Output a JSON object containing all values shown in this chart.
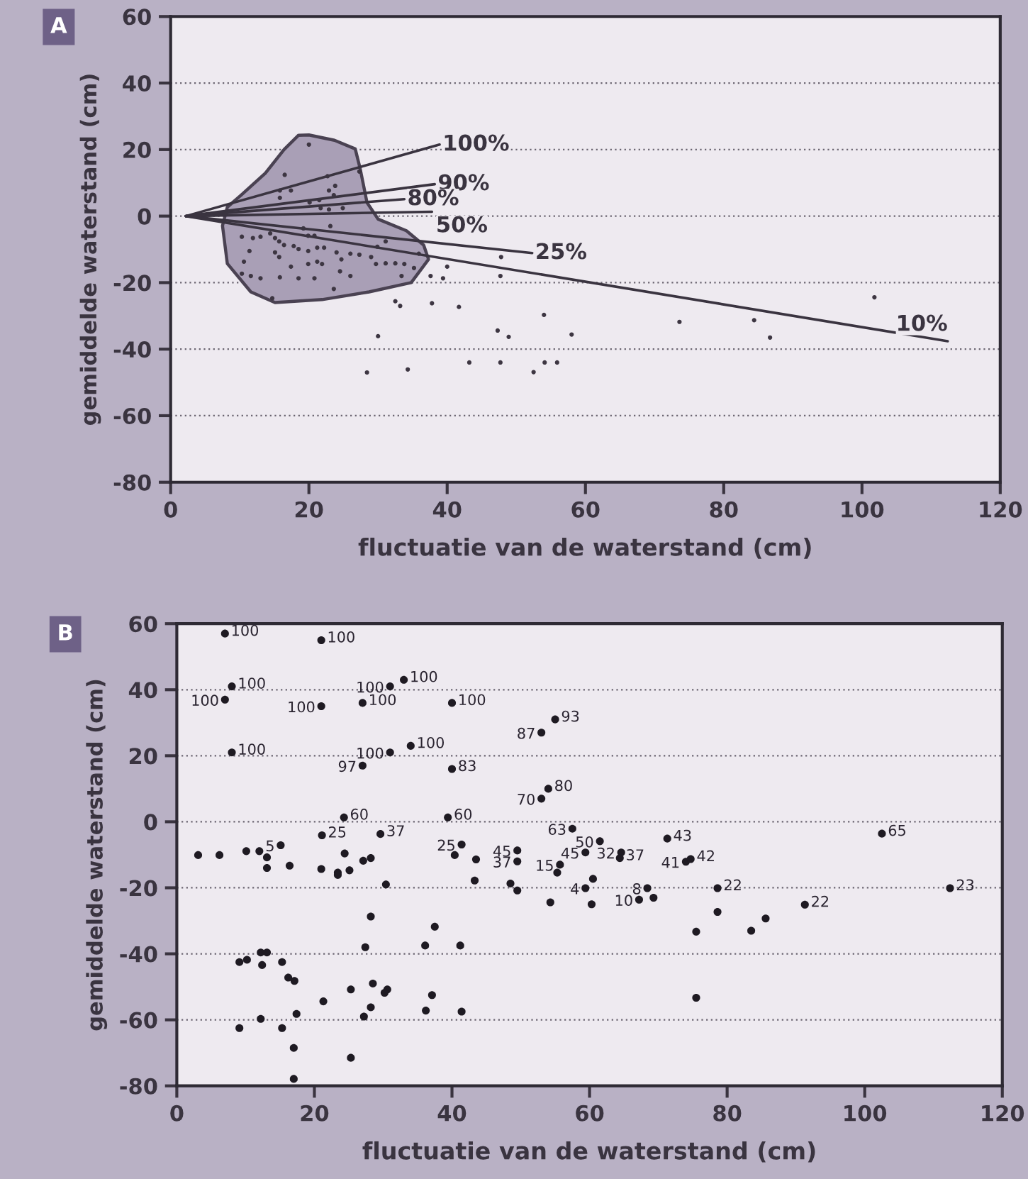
{
  "chart_data": [
    {
      "type": "scatter",
      "title": "A",
      "xlabel": "fluctuatie van de waterstand (cm)",
      "ylabel": "gemiddelde waterstand (cm)",
      "xlim": [
        0,
        120
      ],
      "ylim": [
        -80,
        60
      ],
      "xticks": [
        0,
        20,
        40,
        60,
        80,
        100,
        120
      ],
      "yticks": [
        -80,
        -60,
        -40,
        -20,
        0,
        20,
        40,
        60
      ],
      "grid": "y",
      "series": [
        {
          "type": "area",
          "color": "#a99fb6",
          "x": [
            20.0,
            23.7,
            26.7,
            27.4,
            28.4,
            30.0,
            34.1,
            36.6,
            37.3,
            34.8,
            28.7,
            21.9,
            15.1,
            11.6,
            8.2,
            7.5,
            8.2,
            10.3,
            13.7,
            16.4,
            18.5
          ],
          "values": [
            24.4,
            22.8,
            20.2,
            14.4,
            4.1,
            -0.9,
            -4.4,
            -8.7,
            -13.0,
            -20.0,
            -22.8,
            -25.1,
            -26.0,
            -22.8,
            -14.3,
            -2.9,
            2.7,
            6.5,
            12.9,
            20.0,
            24.3
          ]
        },
        {
          "type": "scatter",
          "marker": "circle",
          "color": "#3d3642",
          "x": [
            20.0,
            16.5,
            15.8,
            15.8,
            17.4,
            22.7,
            23.8,
            22.9,
            23.6,
            20.1,
            21.5,
            21.7,
            22.9,
            24.9,
            27.3,
            23.1,
            10.3,
            11.9,
            13.0,
            14.4,
            15.1,
            15.7,
            16.4,
            17.8,
            19.2,
            19.9,
            20.8,
            18.5,
            19.9,
            21.2,
            22.2,
            11.4,
            10.6,
            15.1,
            15.7,
            17.4,
            19.9,
            21.2,
            21.9,
            24.0,
            24.7,
            26.0,
            27.3,
            29.0,
            29.9,
            31.1,
            29.7,
            31.1,
            32.5,
            33.8,
            35.2,
            35.9,
            10.3,
            11.6,
            13.0,
            15.8,
            18.5,
            20.8,
            23.6,
            26.0,
            24.5,
            14.7,
            33.4,
            37.6,
            39.4,
            40.0,
            47.8,
            47.7,
            32.5,
            33.2,
            37.8,
            41.7,
            54.0,
            47.3,
            48.9,
            30.0,
            58.0,
            43.2,
            47.7,
            54.1,
            55.9,
            28.4,
            34.3,
            52.5,
            73.6,
            84.4,
            86.7,
            101.8
          ],
          "values": [
            21.5,
            12.4,
            7.7,
            5.5,
            7.7,
            12.0,
            9.1,
            7.7,
            6.3,
            4.1,
            4.8,
            2.4,
            2.0,
            2.4,
            13.4,
            -3.0,
            -6.2,
            -6.6,
            -6.2,
            -5.2,
            -6.6,
            -7.6,
            -8.7,
            -9.0,
            -3.7,
            -5.9,
            -5.9,
            -9.9,
            -10.5,
            -9.5,
            -9.5,
            -10.5,
            -13.7,
            -10.9,
            -12.3,
            -15.2,
            -14.4,
            -13.7,
            -14.4,
            -10.9,
            -13.0,
            -11.3,
            -11.6,
            -12.3,
            -9.2,
            -7.6,
            -14.4,
            -14.2,
            -14.2,
            -14.4,
            -15.6,
            -11.3,
            -17.3,
            -18.0,
            -18.7,
            -18.4,
            -18.7,
            -18.7,
            -21.9,
            -18.0,
            -16.6,
            -24.7,
            -18.0,
            -18.0,
            -18.7,
            -15.2,
            -12.3,
            -18.0,
            -25.6,
            -27.0,
            -26.2,
            -27.3,
            -29.7,
            -34.4,
            -36.3,
            -36.1,
            -35.6,
            -44.0,
            -44.0,
            -44.0,
            -44.0,
            -47.0,
            -46.1,
            -46.9,
            -31.8,
            -31.3,
            -36.5,
            -24.4
          ]
        },
        {
          "type": "line",
          "name": "100%",
          "color": "#3a3440",
          "x": [
            2.2,
            38.9
          ],
          "values": [
            0,
            21.5
          ]
        },
        {
          "type": "line",
          "name": "90%",
          "color": "#3a3440",
          "x": [
            2.2,
            38.2
          ],
          "values": [
            0,
            9.6
          ]
        },
        {
          "type": "line",
          "name": "80%",
          "color": "#3a3440",
          "x": [
            2.2,
            33.8
          ],
          "values": [
            0,
            5.1
          ]
        },
        {
          "type": "line",
          "name": "50%",
          "color": "#3a3440",
          "x": [
            2.2,
            37.8
          ],
          "values": [
            0,
            1.3
          ]
        },
        {
          "type": "line",
          "name": "25%",
          "color": "#3a3440",
          "x": [
            2.2,
            52.3
          ],
          "values": [
            0,
            -11.1
          ]
        },
        {
          "type": "line",
          "name": "10%",
          "color": "#3a3440",
          "x": [
            2.2,
            112.4
          ],
          "values": [
            0,
            -37.6
          ]
        }
      ]
    },
    {
      "type": "scatter",
      "title": "B",
      "xlabel": "fluctuatie van de waterstand (cm)",
      "ylabel": "gemiddelde waterstand (cm)",
      "xlim": [
        0,
        120
      ],
      "ylim": [
        -80,
        60
      ],
      "xticks": [
        0,
        20,
        40,
        60,
        80,
        100,
        120
      ],
      "yticks": [
        -80,
        -60,
        -40,
        -20,
        0,
        20,
        40,
        60
      ],
      "grid": "y",
      "series": [
        {
          "type": "scatter",
          "marker": "circle",
          "color": "#1e1a22",
          "x": [
            7,
            21,
            8,
            7,
            31,
            33,
            21,
            27,
            40,
            8,
            27,
            31,
            34,
            40,
            53,
            55,
            53,
            54,
            3.1,
            6.2,
            10.1,
            12.0,
            13.1,
            13.1,
            15.1,
            16.4,
            21.1,
            21.0,
            23.4,
            23.4,
            24.4,
            25.1,
            24.3,
            27.1,
            28.2,
            29.6,
            30.4,
            28.2,
            27.4,
            36.1,
            37.5,
            41.2,
            39.4,
            40.4,
            41.4,
            43.5,
            43.3,
            49.5,
            49.5,
            48.5,
            49.5,
            54.3,
            55.7,
            55.3,
            9.1,
            10.2,
            12.2,
            13.1,
            12.4,
            15.3,
            16.2,
            17.1,
            25.3,
            28.5,
            30.6,
            30.2,
            37.1,
            21.3,
            28.2,
            9.1,
            12.2,
            15.3,
            17.4,
            17.0,
            17.0,
            25.3,
            27.2,
            36.2,
            41.4,
            57.5,
            59.4,
            61.5,
            64.6,
            64.4,
            59.4,
            60.5,
            60.3,
            71.3,
            74.0,
            74.7,
            68.4,
            67.2,
            69.3,
            78.6,
            78.6,
            75.5,
            75.5,
            83.5,
            85.6,
            91.3,
            102.5,
            112.4
          ],
          "values": [
            57,
            55,
            41,
            37,
            41,
            43,
            35,
            36,
            36,
            21,
            17,
            21,
            23,
            16,
            27,
            31,
            7,
            10,
            -10.1,
            -10.1,
            -8.9,
            -8.9,
            -10.8,
            -14.0,
            -7.1,
            -13.3,
            -4.1,
            -14.3,
            -15.4,
            -16.1,
            -9.6,
            -14.7,
            1.3,
            -11.8,
            -11.0,
            -3.7,
            -19.0,
            -28.7,
            -38.0,
            -37.5,
            -31.8,
            -37.5,
            1.3,
            -10.1,
            -6.9,
            -11.4,
            -17.8,
            -8.7,
            -12.0,
            -18.7,
            -20.8,
            -24.4,
            -13.0,
            -15.4,
            -42.5,
            -41.8,
            -39.6,
            -39.6,
            -43.4,
            -42.5,
            -47.2,
            -48.2,
            -50.8,
            -49.0,
            -50.8,
            -51.8,
            -52.5,
            -54.4,
            -56.2,
            -62.5,
            -59.7,
            -62.5,
            -58.2,
            -68.5,
            -77.9,
            -71.5,
            -59.0,
            -57.2,
            -57.5,
            -2.1,
            -9.3,
            -5.9,
            -9.3,
            -11.0,
            -20.1,
            -17.3,
            -25.0,
            -5.1,
            -12.1,
            -11.3,
            -20.1,
            -23.6,
            -23.0,
            -20.1,
            -27.3,
            -33.3,
            -53.3,
            -33.0,
            -29.3,
            -25.1,
            -3.6,
            -20.1
          ]
        }
      ],
      "annotations": [
        {
          "text": "100",
          "x": 7,
          "y": 57
        },
        {
          "text": "100",
          "x": 21,
          "y": 55
        },
        {
          "text": "100",
          "x": 8,
          "y": 41
        },
        {
          "text": "100",
          "x": 7,
          "y": 37
        },
        {
          "text": "100",
          "x": 31,
          "y": 41
        },
        {
          "text": "100",
          "x": 33,
          "y": 43
        },
        {
          "text": "100",
          "x": 21,
          "y": 35
        },
        {
          "text": "100",
          "x": 27,
          "y": 36
        },
        {
          "text": "100",
          "x": 40,
          "y": 36
        },
        {
          "text": "100",
          "x": 8,
          "y": 21
        },
        {
          "text": "97",
          "x": 27,
          "y": 17
        },
        {
          "text": "100",
          "x": 31,
          "y": 21
        },
        {
          "text": "100",
          "x": 34,
          "y": 23
        },
        {
          "text": "83",
          "x": 40,
          "y": 16
        },
        {
          "text": "87",
          "x": 53,
          "y": 27
        },
        {
          "text": "93",
          "x": 55,
          "y": 31
        },
        {
          "text": "70",
          "x": 53,
          "y": 7
        },
        {
          "text": "80",
          "x": 54,
          "y": 10
        },
        {
          "text": "5",
          "x": 15.1,
          "y": -7.1
        },
        {
          "text": "25",
          "x": 21.1,
          "y": -4.1
        },
        {
          "text": "60",
          "x": 24.3,
          "y": 1.3
        },
        {
          "text": "37",
          "x": 29.6,
          "y": -3.7
        },
        {
          "text": "60",
          "x": 39.4,
          "y": 1.3
        },
        {
          "text": "25",
          "x": 41.4,
          "y": -6.9
        },
        {
          "text": "45",
          "x": 49.5,
          "y": -8.7
        },
        {
          "text": "37",
          "x": 49.5,
          "y": -12.0
        },
        {
          "text": "15",
          "x": 55.7,
          "y": -13.0
        },
        {
          "text": "45",
          "x": 59.4,
          "y": -9.3
        },
        {
          "text": "63",
          "x": 57.5,
          "y": -2.1
        },
        {
          "text": "50",
          "x": 61.5,
          "y": -5.9
        },
        {
          "text": "32",
          "x": 64.6,
          "y": -9.3
        },
        {
          "text": "37",
          "x": 64.4,
          "y": -11.0
        },
        {
          "text": "4",
          "x": 59.4,
          "y": -20.1
        },
        {
          "text": "43",
          "x": 71.3,
          "y": -5.1
        },
        {
          "text": "41",
          "x": 74.0,
          "y": -12.1
        },
        {
          "text": "42",
          "x": 74.7,
          "y": -11.3
        },
        {
          "text": "8",
          "x": 68.4,
          "y": -20.1
        },
        {
          "text": "10",
          "x": 67.2,
          "y": -23.6
        },
        {
          "text": "22",
          "x": 78.6,
          "y": -20.1
        },
        {
          "text": "22",
          "x": 91.3,
          "y": -25.1
        },
        {
          "text": "65",
          "x": 102.5,
          "y": -3.6
        },
        {
          "text": "23",
          "x": 112.4,
          "y": -20.1
        }
      ]
    }
  ]
}
